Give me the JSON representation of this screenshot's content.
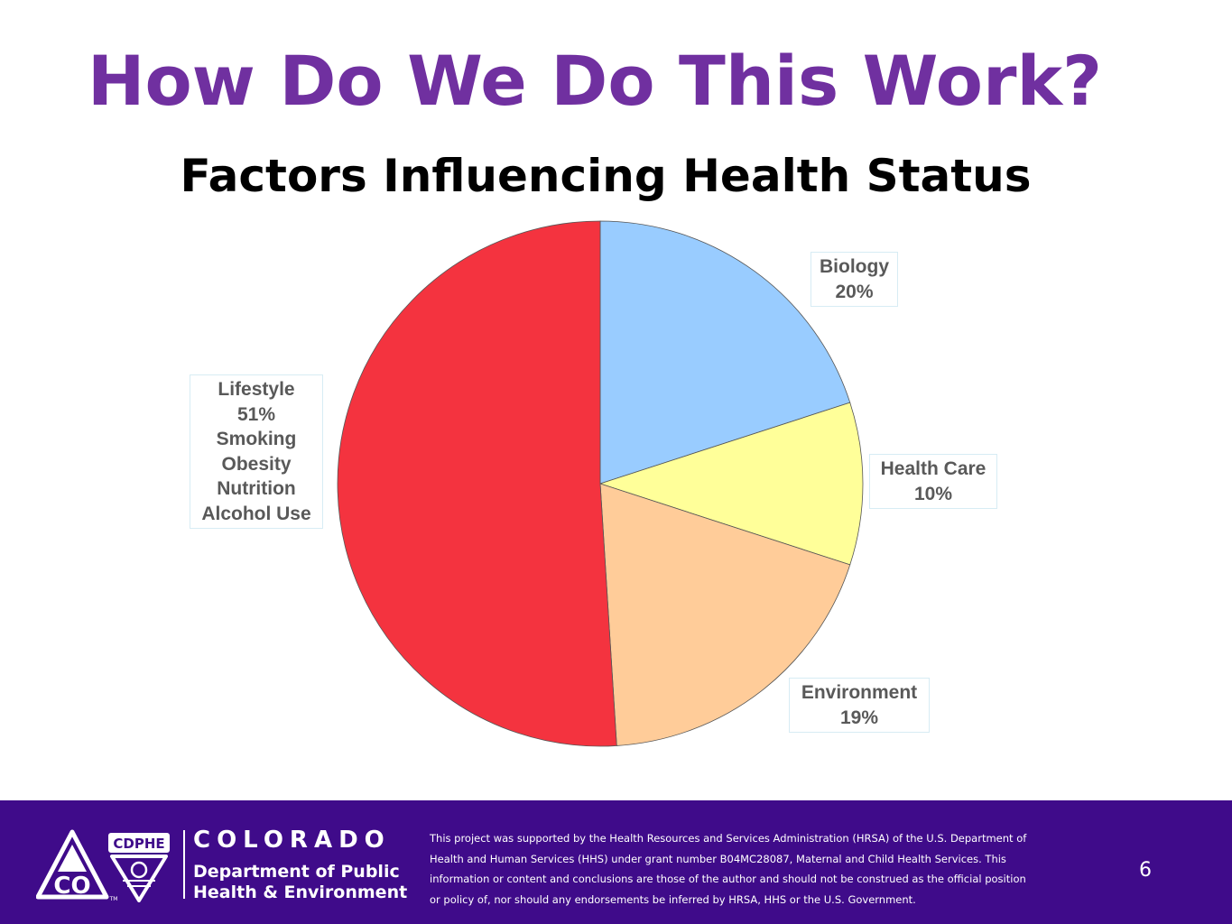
{
  "slide": {
    "title": "How Do We Do This Work?",
    "page_number": "6"
  },
  "chart_data": {
    "type": "pie",
    "title": "Factors Influencing Health Status",
    "slices": [
      {
        "label": "Biology",
        "value": 20,
        "value_label": "20%",
        "color": "#99ccff",
        "extra_lines": []
      },
      {
        "label": "Health Care",
        "value": 10,
        "value_label": "10%",
        "color": "#ffff99",
        "extra_lines": []
      },
      {
        "label": "Environment",
        "value": 19,
        "value_label": "19%",
        "color": "#ffcc99",
        "extra_lines": []
      },
      {
        "label": "Lifestyle",
        "value": 51,
        "value_label": "51%",
        "color": "#f4333f",
        "extra_lines": [
          "Smoking",
          "Obesity",
          "Nutrition",
          "Alcohol Use"
        ]
      }
    ],
    "start": "top",
    "direction": "clockwise",
    "legend": "none"
  },
  "footer": {
    "logo": {
      "badge": "CDPHE",
      "monogram": "CO",
      "trademark": "TM",
      "icon": "colorado-triangle-logo-icon"
    },
    "state_name": "COLORADO",
    "department_lines": [
      "Department of Public",
      "Health & Environment"
    ],
    "disclaimer_lines": [
      "This project was supported by the Health Resources and Services Administration (HRSA) of the U.S. Department of",
      "Health and Human Services (HHS) under grant number B04MC28087, Maternal and Child Health Services. This",
      "information or content and conclusions are those of the author and should not be construed as the official position",
      "or policy of, nor should any endorsements be inferred by HRSA, HHS or the U.S. Government."
    ],
    "background_color": "#3f0b8a"
  }
}
